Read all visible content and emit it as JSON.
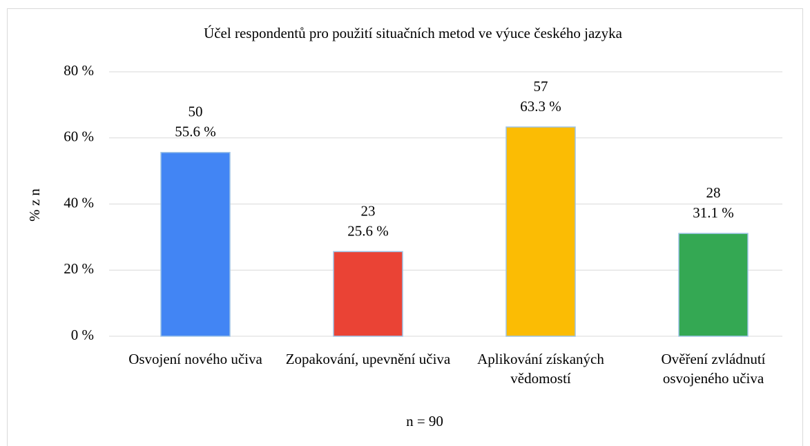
{
  "chart_data": {
    "type": "bar",
    "title": "Účel respondentů pro použití situačních metod ve výuce českého jazyka",
    "y_label": "% z n",
    "x_label": "n = 90",
    "categories": [
      "Osvojení nového učiva",
      "Zopakování, upevnění učiva",
      "Aplikování získaných vědomostí",
      "Ověření zvládnutí osvojeného učiva"
    ],
    "values": [
      55.6,
      25.6,
      63.3,
      31.1
    ],
    "value_labels": [
      "55.6 %",
      "25.6 %",
      "63.3 %",
      "31.1 %"
    ],
    "counts": [
      50,
      23,
      57,
      28
    ],
    "colors": [
      "#4285f4",
      "#ea4335",
      "#fbbc04",
      "#34a853"
    ],
    "ylim": [
      0,
      80
    ],
    "yticks": [
      {
        "value": 0,
        "label": "0 %"
      },
      {
        "value": 20,
        "label": "20 %"
      },
      {
        "value": 40,
        "label": "40 %"
      },
      {
        "value": 60,
        "label": "60 %"
      },
      {
        "value": 80,
        "label": "80 %"
      }
    ],
    "grid": true
  }
}
